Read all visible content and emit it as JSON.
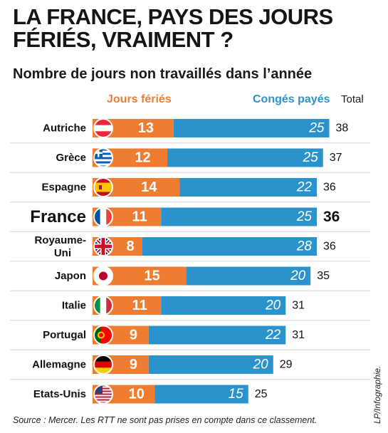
{
  "title": "LA FRANCE, PAYS DES JOURS FÉRIÉS, VRAIMENT ?",
  "subtitle": "Nombre de jours non travaillés dans l’année",
  "legend": {
    "holidays": "Jours fériés",
    "paid_leave": "Congés payés",
    "total": "Total"
  },
  "source": "Source : Mercer. Les RTT ne sont pas prises en compte dans ce classement.",
  "credit": "LP/Infographie.",
  "colors": {
    "holidays": "#ee7d32",
    "paid_leave": "#2b93cc",
    "divider": "#d6d6d6"
  },
  "chart_data": {
    "type": "bar",
    "stacked": true,
    "orientation": "horizontal",
    "categories": [
      "Autriche",
      "Grèce",
      "Espagne",
      "France",
      "Royaume-Uni",
      "Japon",
      "Italie",
      "Portugal",
      "Allemagne",
      "Etats-Unis"
    ],
    "flags": [
      "austria-flag",
      "greece-flag",
      "spain-flag",
      "france-flag",
      "uk-flag",
      "japan-flag",
      "italy-flag",
      "portugal-flag",
      "germany-flag",
      "usa-flag"
    ],
    "highlight": "France",
    "series": [
      {
        "name": "Jours fériés",
        "values": [
          13,
          12,
          14,
          11,
          8,
          15,
          11,
          9,
          9,
          10
        ]
      },
      {
        "name": "Congés payés",
        "values": [
          25,
          25,
          22,
          25,
          28,
          20,
          20,
          22,
          20,
          15
        ]
      }
    ],
    "totals": [
      38,
      37,
      36,
      36,
      36,
      35,
      31,
      31,
      29,
      25
    ]
  }
}
